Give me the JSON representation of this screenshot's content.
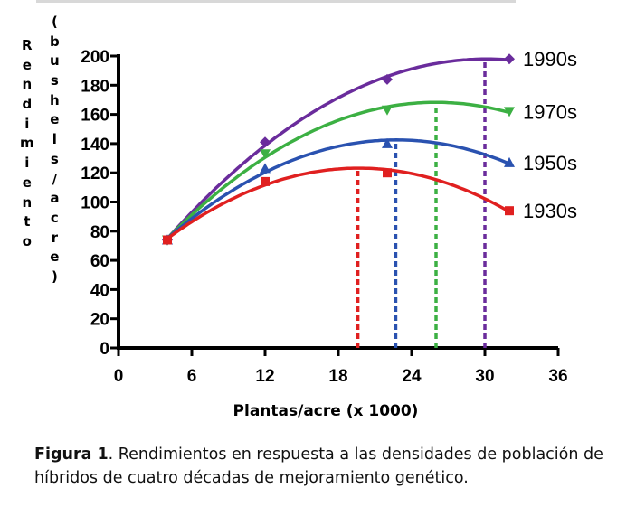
{
  "chart_data": {
    "type": "line",
    "title": "",
    "xlabel": "Plantas/acre (x 1000)",
    "ylabel_left": "Rendimiento",
    "ylabel_right": "(bushels/acre)",
    "xlim": [
      0,
      36
    ],
    "ylim": [
      0,
      200
    ],
    "xticks": [
      0,
      6,
      12,
      18,
      24,
      30,
      36
    ],
    "yticks": [
      0,
      20,
      40,
      60,
      80,
      100,
      120,
      140,
      160,
      180,
      200
    ],
    "x": [
      4,
      12,
      22,
      32
    ],
    "grid": false,
    "legend": "right, labels at line ends",
    "series": [
      {
        "name": "1990s",
        "color": "#6a2c9c",
        "marker": "diamond",
        "values": [
          74,
          141,
          184,
          198
        ],
        "optimum_x": 30
      },
      {
        "name": "1970s",
        "color": "#3cb043",
        "marker": "triangle-down",
        "values": [
          74,
          133,
          163,
          162
        ],
        "optimum_x": 26
      },
      {
        "name": "1950s",
        "color": "#2a52b0",
        "marker": "triangle-up",
        "values": [
          74,
          123,
          140,
          127
        ],
        "optimum_x": 22.7
      },
      {
        "name": "1930s",
        "color": "#e02020",
        "marker": "square",
        "values": [
          74,
          114,
          120,
          94
        ],
        "optimum_x": 19.6
      }
    ]
  },
  "caption": {
    "bold": "Figura 1",
    "text": ". Rendimientos en respuesta a las densidades de población de híbridos de cuatro décadas de mejoramiento genético."
  }
}
